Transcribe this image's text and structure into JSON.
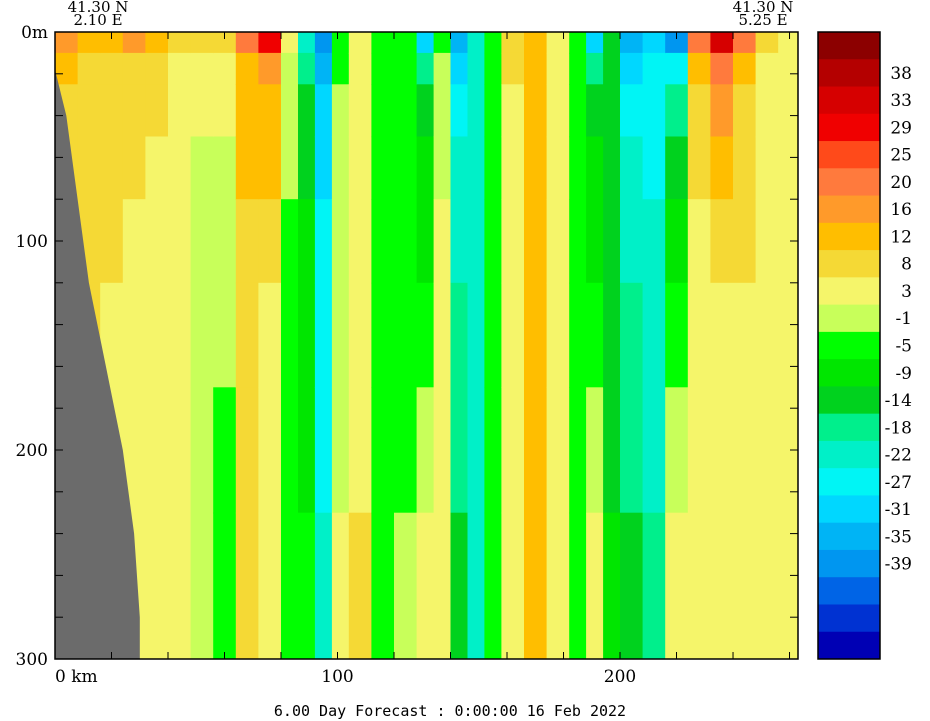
{
  "chart_data": {
    "type": "heatmap",
    "title": "6.00 Day Forecast :  0:00:00  16 Feb 2022",
    "corner_left": {
      "lat": "41.30 N",
      "lon": "2.10 E"
    },
    "corner_right": {
      "lat": "41.30 N",
      "lon": "5.25 E"
    },
    "x_axis": {
      "unit_label": "0 km",
      "ticks": [
        0,
        100,
        200
      ],
      "tick_labels": [
        "0 km",
        "100",
        "200"
      ],
      "range": [
        0,
        263
      ]
    },
    "y_axis": {
      "ticks": [
        0,
        100,
        200,
        300
      ],
      "tick_labels": [
        "0m",
        "100",
        "200",
        "300"
      ],
      "range": [
        0,
        300
      ],
      "inverted": true
    },
    "colorbar": {
      "labels": [
        "38",
        "33",
        "29",
        "25",
        "20",
        "16",
        "12",
        "8",
        "3",
        "-1",
        "-5",
        "-9",
        "-14",
        "-18",
        "-22",
        "-27",
        "-31",
        "-35",
        "-39"
      ],
      "colors": [
        "#8c0000",
        "#b40000",
        "#d60000",
        "#f00000",
        "#ff4a1a",
        "#ff7a3d",
        "#ff9a2a",
        "#ffbe00",
        "#f5d935",
        "#f5f56a",
        "#c8ff5a",
        "#00ff00",
        "#00e600",
        "#00d21e",
        "#00ef8c",
        "#00f0c8",
        "#00f5f5",
        "#00d7ff",
        "#00b4f5",
        "#0096f0",
        "#0064e6",
        "#0032d2",
        "#0000b4"
      ]
    },
    "columns": [
      {
        "x": [
          0,
          8
        ],
        "surface": 16,
        "deep": 8
      },
      {
        "x": [
          8,
          16
        ],
        "surface": 14,
        "deep": 8
      },
      {
        "x": [
          16,
          24
        ],
        "surface": 15,
        "deep": 6
      },
      {
        "x": [
          24,
          32
        ],
        "surface": 16,
        "deep": 5
      },
      {
        "x": [
          32,
          40
        ],
        "surface": 14,
        "deep": 4
      },
      {
        "x": [
          40,
          48
        ],
        "surface": 10,
        "deep": 3
      },
      {
        "x": [
          48,
          56
        ],
        "surface": 8,
        "deep": -1
      },
      {
        "x": [
          56,
          64
        ],
        "surface": 10,
        "deep": -3
      },
      {
        "x": [
          64,
          72
        ],
        "surface": 20,
        "deep": 8
      },
      {
        "x": [
          72,
          80
        ],
        "surface": 30,
        "deep": 3
      },
      {
        "x": [
          80,
          86
        ],
        "surface": 5,
        "deep": -3
      },
      {
        "x": [
          86,
          92
        ],
        "surface": -20,
        "deep": -5
      },
      {
        "x": [
          92,
          98
        ],
        "surface": -38,
        "deep": -22
      },
      {
        "x": [
          98,
          104
        ],
        "surface": -5,
        "deep": 3
      },
      {
        "x": [
          104,
          112
        ],
        "surface": 5,
        "deep": 8
      },
      {
        "x": [
          112,
          120
        ],
        "surface": -3,
        "deep": -3
      },
      {
        "x": [
          120,
          128
        ],
        "surface": -5,
        "deep": -1
      },
      {
        "x": [
          128,
          134
        ],
        "surface": -30,
        "deep": 3
      },
      {
        "x": [
          134,
          140
        ],
        "surface": -3,
        "deep": 6
      },
      {
        "x": [
          140,
          146
        ],
        "surface": -35,
        "deep": -14
      },
      {
        "x": [
          146,
          152
        ],
        "surface": -22,
        "deep": -20
      },
      {
        "x": [
          152,
          158
        ],
        "surface": -5,
        "deep": -3
      },
      {
        "x": [
          158,
          166
        ],
        "surface": 10,
        "deep": 5
      },
      {
        "x": [
          166,
          174
        ],
        "surface": 14,
        "deep": 12
      },
      {
        "x": [
          174,
          182
        ],
        "surface": 5,
        "deep": 3
      },
      {
        "x": [
          182,
          188
        ],
        "surface": -3,
        "deep": -5
      },
      {
        "x": [
          188,
          194
        ],
        "surface": -30,
        "deep": 3
      },
      {
        "x": [
          194,
          200
        ],
        "surface": -10,
        "deep": -9
      },
      {
        "x": [
          200,
          208
        ],
        "surface": -35,
        "deep": -14
      },
      {
        "x": [
          208,
          216
        ],
        "surface": -30,
        "deep": -18
      },
      {
        "x": [
          216,
          224
        ],
        "surface": -38,
        "deep": 3
      },
      {
        "x": [
          224,
          232
        ],
        "surface": 20,
        "deep": 3
      },
      {
        "x": [
          232,
          240
        ],
        "surface": 33,
        "deep": 3
      },
      {
        "x": [
          240,
          248
        ],
        "surface": 20,
        "deep": 5
      },
      {
        "x": [
          248,
          256
        ],
        "surface": 10,
        "deep": 3
      },
      {
        "x": [
          256,
          263
        ],
        "surface": 3,
        "deep": 3
      }
    ],
    "land": [
      [
        0,
        18
      ],
      [
        4,
        40
      ],
      [
        8,
        80
      ],
      [
        12,
        120
      ],
      [
        18,
        160
      ],
      [
        24,
        200
      ],
      [
        28,
        240
      ],
      [
        30,
        280
      ],
      [
        30,
        300
      ],
      [
        0,
        300
      ]
    ]
  }
}
